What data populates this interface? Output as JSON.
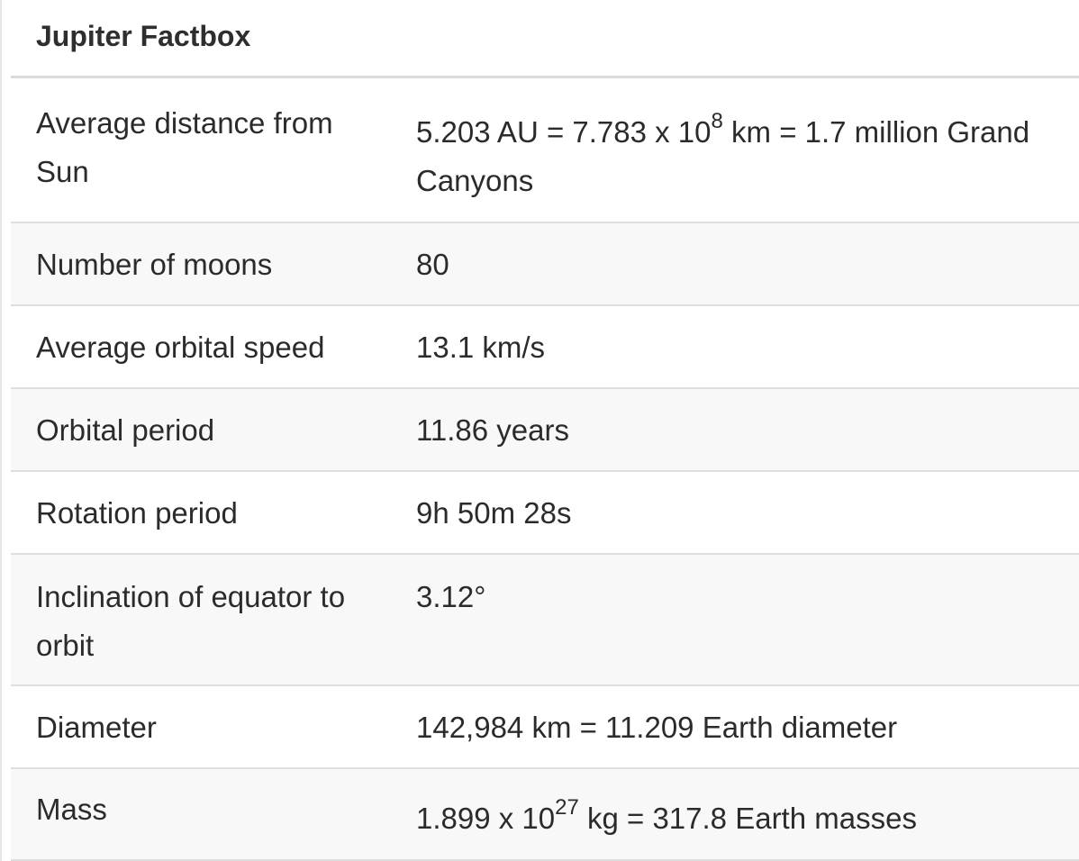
{
  "title": "Jupiter Factbox",
  "rows": [
    {
      "label": "Average distance from Sun",
      "value_prefix": "5.203 AU = 7.783 x 10",
      "value_sup": "8",
      "value_suffix": " km = 1.7 million Grand Canyons"
    },
    {
      "label": "Number of moons",
      "value": "80"
    },
    {
      "label": "Average orbital speed",
      "value": "13.1 km/s"
    },
    {
      "label": "Orbital period",
      "value": "11.86 years"
    },
    {
      "label": "Rotation period",
      "value": "9h 50m 28s"
    },
    {
      "label": "Inclination of equator to orbit",
      "value": "3.12°"
    },
    {
      "label": "Diameter",
      "value": "142,984 km = 11.209 Earth diameter"
    },
    {
      "label": "Mass",
      "value_prefix": "1.899 x 10",
      "value_sup": "27",
      "value_suffix": " kg = 317.8 Earth masses"
    }
  ]
}
